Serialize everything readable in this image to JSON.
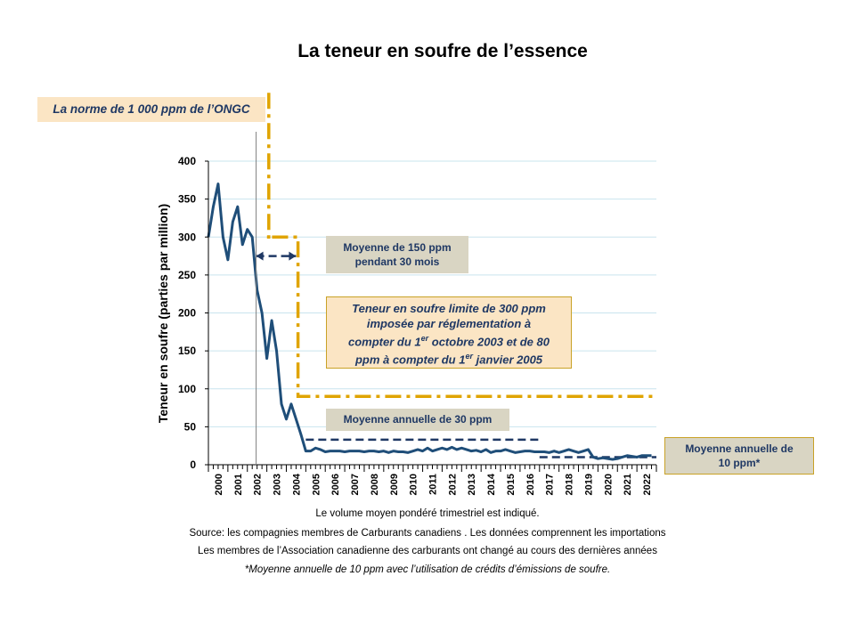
{
  "chart_data": {
    "type": "line",
    "title": "La teneur en soufre de l’essence",
    "ylabel": "Teneur en soufre (parties par million)",
    "xlabel": "",
    "ylim": [
      0,
      400
    ],
    "yticks": [
      0,
      50,
      100,
      150,
      200,
      250,
      300,
      350,
      400
    ],
    "xlim": [
      2000,
      2023
    ],
    "xticks": [
      "2000",
      "2001",
      "2002",
      "2003",
      "2004",
      "2005",
      "2006",
      "2007",
      "2008",
      "2009",
      "2010",
      "2011",
      "2012",
      "2013",
      "2014",
      "2015",
      "2016",
      "2017",
      "2018",
      "2019",
      "2020",
      "2021",
      "2022"
    ],
    "grid": true,
    "series": [
      {
        "color": "#1f4e79",
        "x": [
          2000.0,
          2000.25,
          2000.5,
          2000.75,
          2001.0,
          2001.25,
          2001.5,
          2001.75,
          2002.0,
          2002.25,
          2002.5,
          2002.75,
          2003.0,
          2003.25,
          2003.5,
          2003.75,
          2004.0,
          2004.25,
          2004.5,
          2004.75,
          2005.0,
          2005.25,
          2005.5,
          2005.75,
          2006.0,
          2006.25,
          2006.5,
          2006.75,
          2007.0,
          2007.25,
          2007.5,
          2007.75,
          2008.0,
          2008.25,
          2008.5,
          2008.75,
          2009.0,
          2009.25,
          2009.5,
          2009.75,
          2010.0,
          2010.25,
          2010.5,
          2010.75,
          2011.0,
          2011.25,
          2011.5,
          2011.75,
          2012.0,
          2012.25,
          2012.5,
          2012.75,
          2013.0,
          2013.25,
          2013.5,
          2013.75,
          2014.0,
          2014.25,
          2014.5,
          2014.75,
          2015.0,
          2015.25,
          2015.5,
          2015.75,
          2016.0,
          2016.25,
          2016.5,
          2016.75,
          2017.0,
          2017.25,
          2017.5,
          2017.75,
          2018.0,
          2018.25,
          2018.5,
          2018.75,
          2019.0,
          2019.25,
          2019.5,
          2019.75,
          2020.0,
          2020.25,
          2020.5,
          2020.75,
          2021.0,
          2021.25,
          2021.5,
          2021.75,
          2022.0,
          2022.25,
          2022.5,
          2022.75
        ],
        "values": [
          300,
          340,
          370,
          300,
          270,
          320,
          340,
          290,
          310,
          300,
          230,
          200,
          140,
          190,
          150,
          80,
          60,
          80,
          60,
          40,
          18,
          18,
          22,
          20,
          17,
          18,
          18,
          18,
          17,
          18,
          18,
          18,
          17,
          18,
          18,
          17,
          18,
          16,
          18,
          17,
          17,
          16,
          18,
          20,
          18,
          22,
          18,
          20,
          22,
          20,
          23,
          20,
          22,
          20,
          18,
          19,
          17,
          20,
          16,
          18,
          18,
          20,
          18,
          16,
          17,
          18,
          18,
          17,
          17,
          17,
          16,
          18,
          16,
          18,
          20,
          18,
          16,
          18,
          20,
          10,
          8,
          9,
          8,
          7,
          8,
          10,
          12,
          11,
          10,
          12,
          12,
          12
        ]
      }
    ],
    "reference_lines": [
      {
        "color": "#e0a400",
        "style": "dash-dot",
        "x": [
          2003.1,
          2003.1,
          2003.0,
          2004.6,
          2004.6,
          2005.0,
          2023.0
        ],
        "y": [
          490,
          300,
          300,
          300,
          90,
          90,
          90
        ]
      },
      {
        "color": "#1f3864",
        "style": "dashed",
        "x": [
          2005.0,
          2017.0
        ],
        "y": [
          33,
          33
        ]
      },
      {
        "color": "#1f3864",
        "style": "dashed",
        "x": [
          2017.0,
          2023.0
        ],
        "y": [
          10,
          10
        ]
      },
      {
        "color": "#1f3864",
        "style": "dashed-arrow",
        "x": [
          2002.45,
          2004.5
        ],
        "y": [
          275,
          275
        ]
      }
    ],
    "annotations": {
      "norm": "La norme de 1 000 ppm de l’ONGC",
      "avg150_line1": "Moyenne de 150 ppm",
      "avg150_line2": "pendant 30 mois",
      "limit_line1": "Teneur en soufre limite de 300 ppm",
      "limit_line2": "imposée par réglementation à",
      "limit_line3a": "compter du 1",
      "limit_line3sup": "er",
      "limit_line3b": " octobre 2003 et de 80",
      "limit_line4a": "ppm à compter du 1",
      "limit_line4sup": "er",
      "limit_line4b": " janvier 2005",
      "avg30": "Moyenne annuelle de 30 ppm",
      "avg10_line1": "Moyenne annuelle de",
      "avg10_line2": "10 ppm*"
    },
    "notes": [
      "Le volume moyen pondéré trimestriel est indiqué.",
      "Source: les compagnies membres de Carburants canadiens . Les données comprennent les importations",
      "Les membres de l’Association canadienne des carburants ont changé au cours des dernières années",
      "*Moyenne annuelle de 10 ppm avec l’utilisation de crédits d’émissions de soufre."
    ]
  }
}
